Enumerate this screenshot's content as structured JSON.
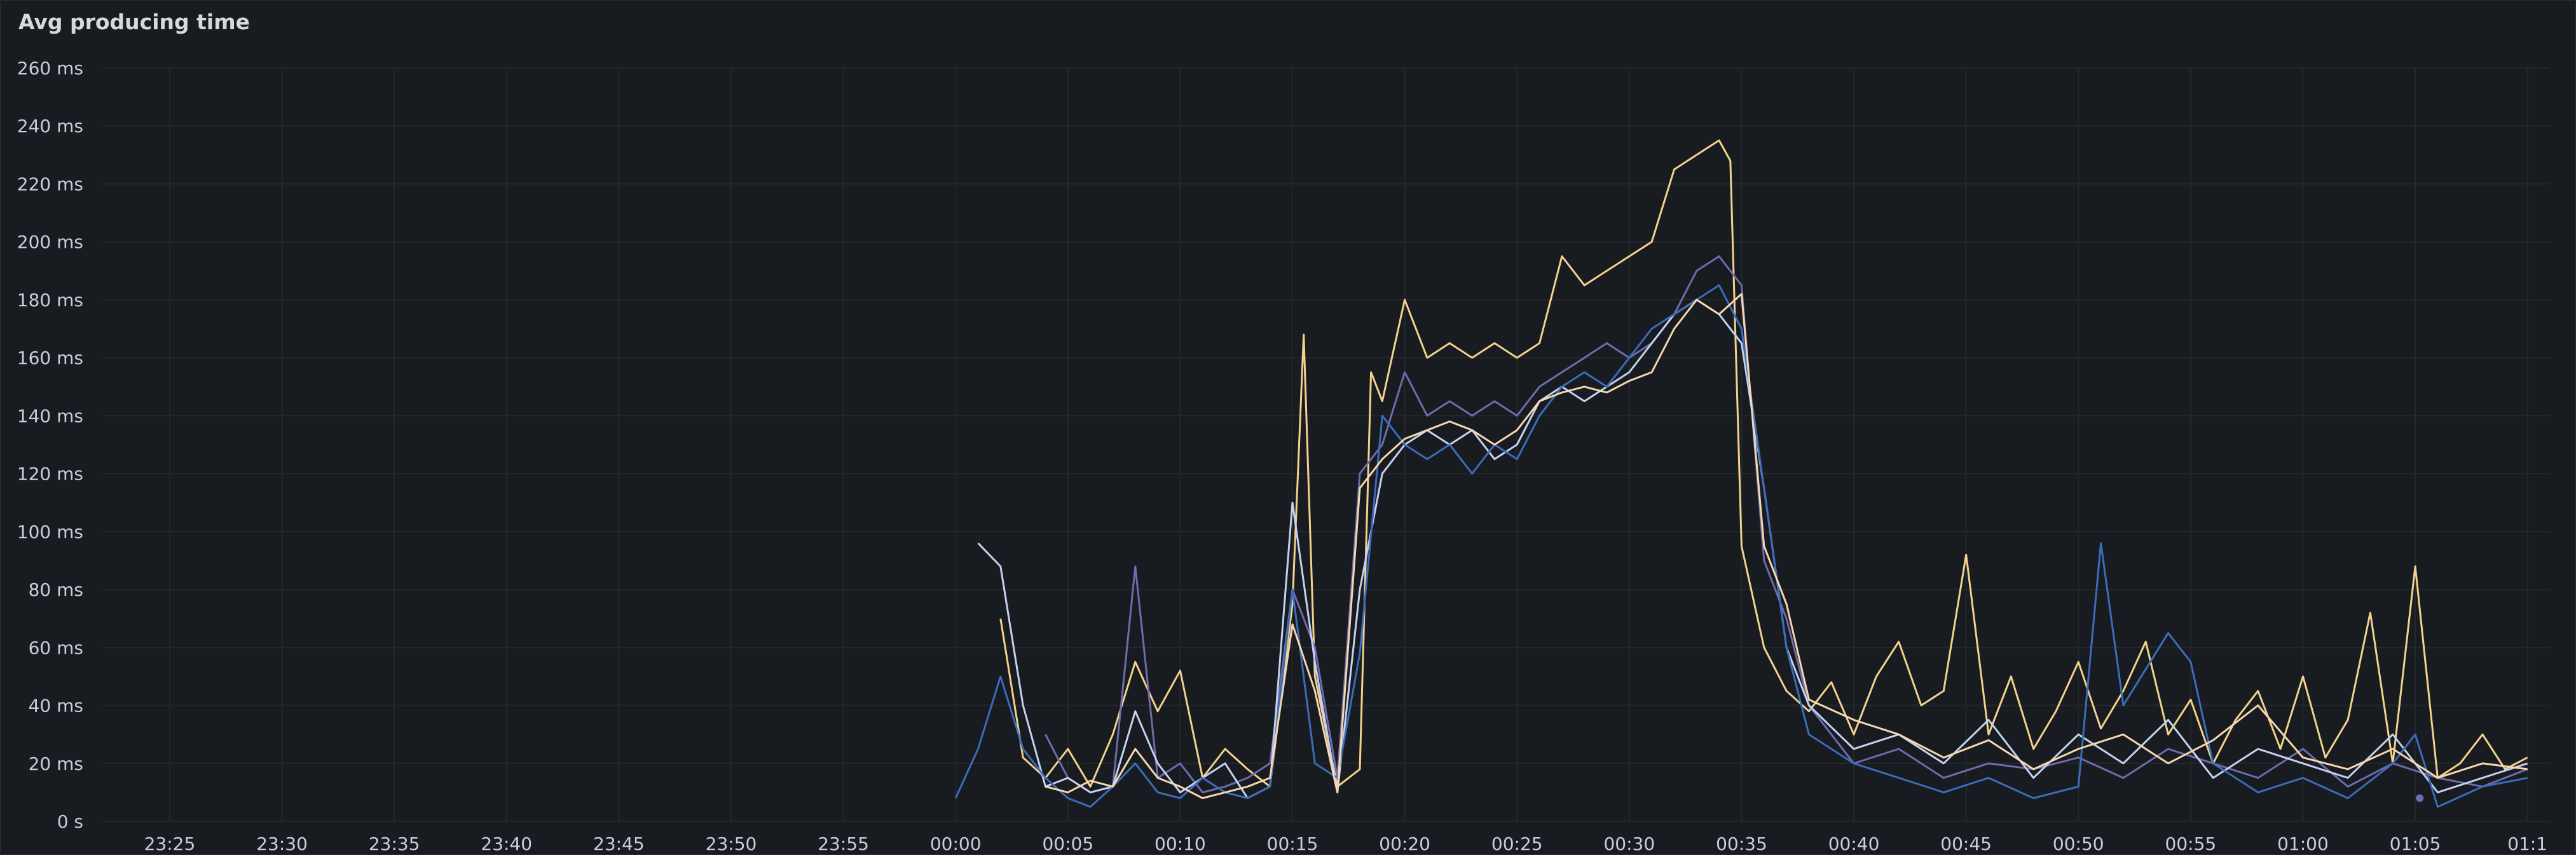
{
  "panel": {
    "title": "Avg producing time"
  },
  "chart_data": {
    "type": "line",
    "title": "Avg producing time",
    "xlabel": "",
    "ylabel": "",
    "ylim": [
      0,
      260
    ],
    "xlim": [
      "23:22",
      "01:11"
    ],
    "y_ticks": [
      "0 s",
      "20 ms",
      "40 ms",
      "60 ms",
      "80 ms",
      "100 ms",
      "120 ms",
      "140 ms",
      "160 ms",
      "180 ms",
      "200 ms",
      "220 ms",
      "240 ms",
      "260 ms"
    ],
    "x_ticks": [
      "23:25",
      "23:30",
      "23:35",
      "23:40",
      "23:45",
      "23:50",
      "23:55",
      "00:00",
      "00:05",
      "00:10",
      "00:15",
      "00:20",
      "00:25",
      "00:30",
      "00:35",
      "00:40",
      "00:45",
      "00:50",
      "00:55",
      "01:00",
      "01:05",
      "01:1"
    ],
    "grid": true,
    "colors": [
      "#f2d28c",
      "#6e6bae",
      "#c4d2f2",
      "#3b6dba",
      "#f5d8b0"
    ],
    "series": [
      {
        "name": "",
        "color": "#f2d28c",
        "x": [
          "00:02",
          "00:03",
          "00:04",
          "00:05",
          "00:06",
          "00:07",
          "00:08",
          "00:09",
          "00:10",
          "00:11",
          "00:12",
          "00:13",
          "00:14",
          "00:15",
          "00:15.5",
          "00:16",
          "00:17",
          "00:18",
          "00:18.5",
          "00:19",
          "00:20",
          "00:21",
          "00:22",
          "00:23",
          "00:24",
          "00:25",
          "00:26",
          "00:27",
          "00:28",
          "00:29",
          "00:30",
          "00:31",
          "00:32",
          "00:33",
          "00:34",
          "00:34.5",
          "00:35",
          "00:36",
          "00:37",
          "00:38",
          "00:39",
          "00:40",
          "00:41",
          "00:42",
          "00:43",
          "00:44",
          "00:45",
          "00:46",
          "00:47",
          "00:48",
          "00:49",
          "00:50",
          "00:51",
          "00:52",
          "00:53",
          "00:54",
          "00:55",
          "00:56",
          "00:57",
          "00:58",
          "00:59",
          "01:00",
          "01:01",
          "01:02",
          "01:03",
          "01:04",
          "01:05",
          "01:06",
          "01:07",
          "01:08",
          "01:09",
          "01:10"
        ],
        "values": [
          70,
          22,
          15,
          25,
          12,
          30,
          55,
          38,
          52,
          15,
          25,
          18,
          12,
          75,
          168,
          50,
          12,
          18,
          155,
          145,
          180,
          160,
          165,
          160,
          165,
          160,
          165,
          195,
          185,
          190,
          195,
          200,
          225,
          230,
          235,
          228,
          95,
          60,
          45,
          38,
          48,
          30,
          50,
          62,
          40,
          45,
          92,
          30,
          50,
          25,
          38,
          55,
          32,
          45,
          62,
          30,
          42,
          20,
          35,
          45,
          25,
          50,
          22,
          35,
          72,
          20,
          88,
          15,
          20,
          30,
          18,
          22
        ]
      },
      {
        "name": "",
        "color": "#6e6bae",
        "x": [
          "00:04",
          "00:05",
          "00:06",
          "00:07",
          "00:08",
          "00:09",
          "00:10",
          "00:11",
          "00:12",
          "00:13",
          "00:14",
          "00:15",
          "00:16",
          "00:17",
          "00:18",
          "00:19",
          "00:20",
          "00:21",
          "00:22",
          "00:23",
          "00:24",
          "00:25",
          "00:26",
          "00:27",
          "00:28",
          "00:29",
          "00:30",
          "00:31",
          "00:32",
          "00:33",
          "00:34",
          "00:35",
          "00:36",
          "00:37",
          "00:38",
          "00:40",
          "00:42",
          "00:44",
          "00:46",
          "00:48",
          "00:50",
          "00:52",
          "00:54",
          "00:56",
          "00:58",
          "01:00",
          "01:02",
          "01:04",
          "01:06",
          "01:08",
          "01:10"
        ],
        "values": [
          30,
          15,
          10,
          12,
          88,
          15,
          20,
          10,
          12,
          15,
          20,
          80,
          60,
          15,
          120,
          130,
          155,
          140,
          145,
          140,
          145,
          140,
          150,
          155,
          160,
          165,
          160,
          165,
          175,
          190,
          195,
          185,
          90,
          70,
          40,
          20,
          25,
          15,
          20,
          18,
          22,
          15,
          25,
          20,
          15,
          25,
          12,
          20,
          15,
          12,
          18
        ]
      },
      {
        "name": "",
        "color": "#c4d2f2",
        "x": [
          "00:01",
          "00:02",
          "00:03",
          "00:04",
          "00:05",
          "00:06",
          "00:07",
          "00:08",
          "00:09",
          "00:10",
          "00:11",
          "00:12",
          "00:13",
          "00:14",
          "00:15",
          "00:16",
          "00:17",
          "00:18",
          "00:19",
          "00:20",
          "00:21",
          "00:22",
          "00:23",
          "00:24",
          "00:25",
          "00:26",
          "00:27",
          "00:28",
          "00:29",
          "00:30",
          "00:31",
          "00:32",
          "00:33",
          "00:34",
          "00:35",
          "00:36",
          "00:37",
          "00:38",
          "00:40",
          "00:42",
          "00:44",
          "00:46",
          "00:48",
          "00:50",
          "00:52",
          "00:54",
          "00:56",
          "00:58",
          "01:00",
          "01:02",
          "01:04",
          "01:06",
          "01:08",
          "01:10"
        ],
        "values": [
          96,
          88,
          40,
          12,
          15,
          10,
          12,
          38,
          20,
          10,
          15,
          20,
          8,
          12,
          110,
          55,
          10,
          80,
          120,
          130,
          135,
          130,
          135,
          125,
          130,
          145,
          150,
          145,
          150,
          155,
          165,
          175,
          180,
          175,
          165,
          115,
          60,
          40,
          25,
          30,
          20,
          35,
          15,
          30,
          20,
          35,
          15,
          25,
          20,
          15,
          30,
          10,
          15,
          20
        ]
      },
      {
        "name": "",
        "color": "#3b6dba",
        "x": [
          "00:00",
          "00:01",
          "00:02",
          "00:03",
          "00:04",
          "00:05",
          "00:06",
          "00:07",
          "00:08",
          "00:09",
          "00:10",
          "00:11",
          "00:12",
          "00:13",
          "00:14",
          "00:15",
          "00:16",
          "00:17",
          "00:18",
          "00:19",
          "00:20",
          "00:21",
          "00:22",
          "00:23",
          "00:24",
          "00:25",
          "00:26",
          "00:27",
          "00:28",
          "00:29",
          "00:30",
          "00:31",
          "00:32",
          "00:33",
          "00:34",
          "00:35",
          "00:36",
          "00:37",
          "00:38",
          "00:40",
          "00:42",
          "00:44",
          "00:46",
          "00:48",
          "00:50",
          "00:51",
          "00:52",
          "00:54",
          "00:55",
          "00:56",
          "00:58",
          "01:00",
          "01:02",
          "01:04",
          "01:05",
          "01:06",
          "01:08",
          "01:10"
        ],
        "values": [
          8,
          25,
          50,
          25,
          15,
          8,
          5,
          12,
          20,
          10,
          8,
          15,
          10,
          8,
          12,
          80,
          20,
          15,
          58,
          140,
          130,
          125,
          130,
          120,
          130,
          125,
          140,
          150,
          155,
          150,
          160,
          170,
          175,
          180,
          185,
          170,
          115,
          60,
          30,
          20,
          15,
          10,
          15,
          8,
          12,
          96,
          40,
          65,
          55,
          20,
          10,
          15,
          8,
          20,
          30,
          5,
          12,
          15
        ]
      },
      {
        "name": "",
        "color": "#f5d8b0",
        "x": [
          "00:04",
          "00:05",
          "00:06",
          "00:07",
          "00:08",
          "00:09",
          "00:10",
          "00:11",
          "00:12",
          "00:13",
          "00:14",
          "00:15",
          "00:16",
          "00:17",
          "00:18",
          "00:19",
          "00:20",
          "00:21",
          "00:22",
          "00:23",
          "00:24",
          "00:25",
          "00:26",
          "00:27",
          "00:28",
          "00:29",
          "00:30",
          "00:31",
          "00:32",
          "00:33",
          "00:34",
          "00:35",
          "00:36",
          "00:37",
          "00:38",
          "00:40",
          "00:42",
          "00:44",
          "00:46",
          "00:48",
          "00:50",
          "00:52",
          "00:54",
          "00:56",
          "00:58",
          "01:00",
          "01:02",
          "01:04",
          "01:06",
          "01:08",
          "01:10"
        ],
        "values": [
          12,
          10,
          14,
          12,
          25,
          15,
          12,
          8,
          10,
          12,
          15,
          68,
          45,
          10,
          115,
          125,
          132,
          135,
          138,
          135,
          130,
          135,
          145,
          148,
          150,
          148,
          152,
          155,
          170,
          180,
          175,
          182,
          95,
          75,
          42,
          35,
          30,
          22,
          28,
          18,
          25,
          30,
          20,
          28,
          40,
          22,
          18,
          25,
          15,
          20,
          18
        ]
      }
    ],
    "dots": [
      {
        "x": "01:05.2",
        "y": 8,
        "color": "#6e6bae"
      }
    ]
  }
}
